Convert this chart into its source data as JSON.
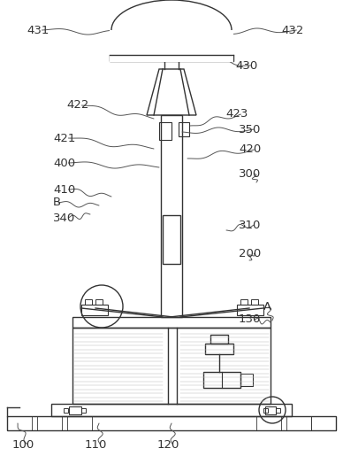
{
  "line_color": "#333333",
  "label_color": "#333333",
  "bg_color": "#ffffff"
}
